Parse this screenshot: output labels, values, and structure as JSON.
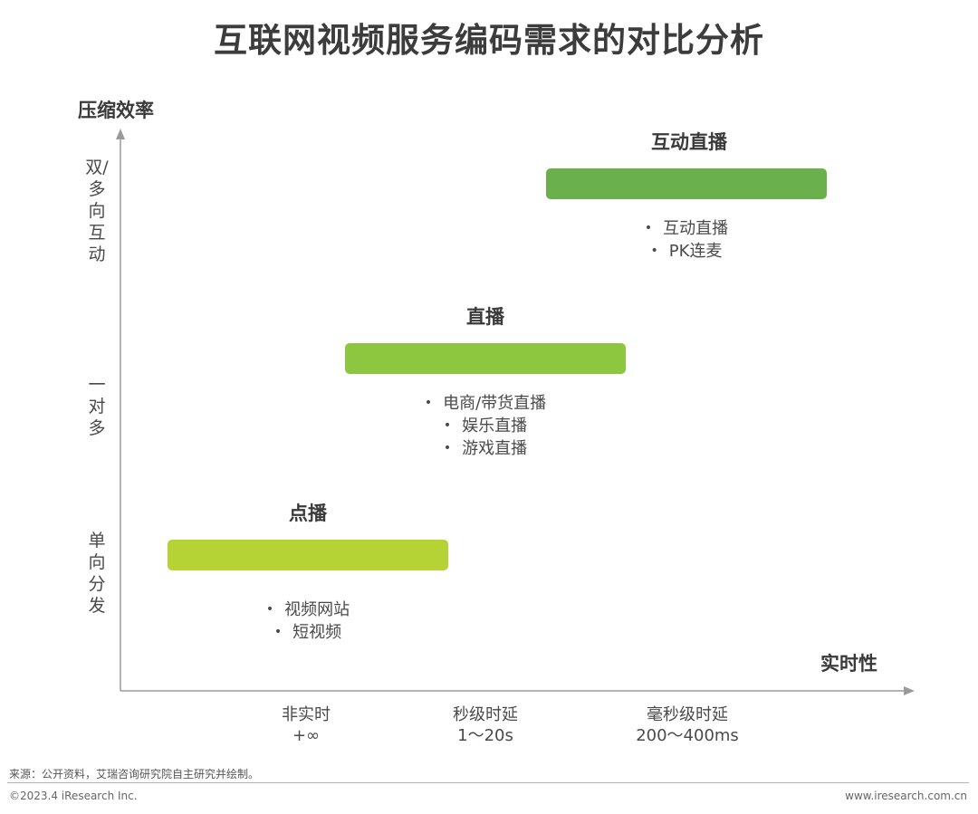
{
  "title": "互联网视频服务编码需求的对比分析",
  "y_axis": {
    "title": "压缩效率",
    "levels": [
      "双/多向互动",
      "一对多",
      "单向分发"
    ]
  },
  "x_axis": {
    "title": "实时性",
    "ticks": [
      {
        "name": "非实时",
        "value": "+∞"
      },
      {
        "name": "秒级时延",
        "value": "1～20s"
      },
      {
        "name": "毫秒级时延",
        "value": "200～400ms"
      }
    ]
  },
  "services": [
    {
      "label": "互动直播",
      "color": "#6ab04c",
      "examples": [
        "互动直播",
        "PK连麦"
      ]
    },
    {
      "label": "直播",
      "color": "#8dc63f",
      "examples": [
        "电商/带货直播",
        "娱乐直播",
        "游戏直播"
      ]
    },
    {
      "label": "点播",
      "color": "#b5d334",
      "examples": [
        "视频网站",
        "短视频"
      ]
    }
  ],
  "source": "来源：公开资料，艾瑞咨询研究院自主研究并绘制。",
  "footer": {
    "copyright": "©2023.4 iResearch Inc.",
    "website": "www.iresearch.com.cn"
  }
}
